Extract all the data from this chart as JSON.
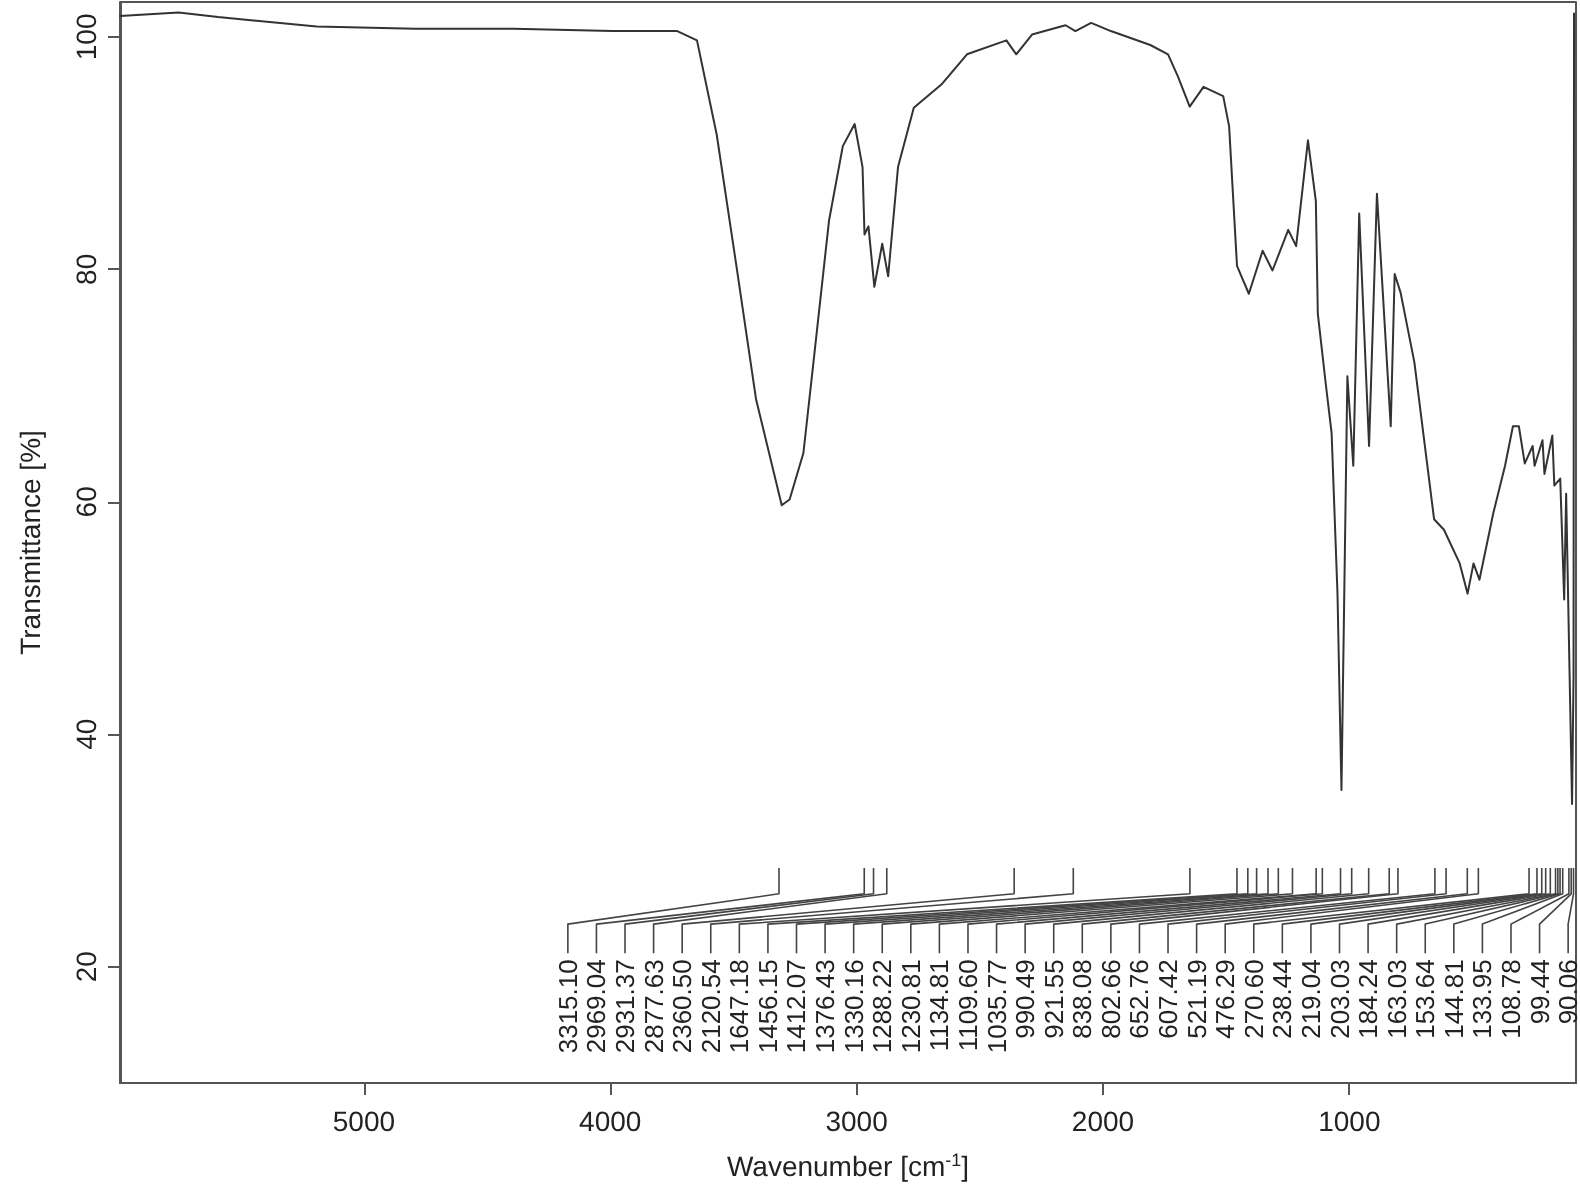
{
  "chart_data": {
    "type": "line",
    "xlabel": "Wavenumber [cm$^{-1}$]",
    "ylabel": "Transmittance [%]",
    "xlim": [
      5990,
      80
    ],
    "ylim": [
      10,
      103
    ],
    "xticks": [
      5000,
      4000,
      3000,
      2000,
      1000
    ],
    "yticks": [
      20,
      40,
      60,
      80,
      100
    ],
    "grid": false,
    "marker": "none",
    "line_style": "solid",
    "series": [
      {
        "color": "#333333",
        "x": [
          5990,
          5752,
          5592,
          5192,
          4792,
          4392,
          3992,
          3728,
          3648,
          3568,
          3488,
          3408,
          3304,
          3272,
          3216,
          3168,
          3112,
          3056,
          3008,
          2976,
          2968,
          2952,
          2928,
          2896,
          2872,
          2832,
          2768,
          2656,
          2552,
          2392,
          2352,
          2288,
          2152,
          2112,
          2048,
          1968,
          1808,
          1736,
          1696,
          1648,
          1592,
          1512,
          1488,
          1456,
          1408,
          1352,
          1312,
          1248,
          1216,
          1168,
          1136,
          1128,
          1096,
          1072,
          1048,
          1032,
          1008,
          984,
          960,
          920,
          888,
          832,
          816,
          792,
          736,
          656,
          616,
          552,
          520,
          496,
          472,
          416,
          368,
          336,
          312,
          288,
          256,
          248,
          216,
          208,
          176,
          168,
          144,
          128,
          120,
          96,
          90,
          88
        ],
        "values": [
          101.8,
          102.1,
          101.7,
          100.9,
          100.7,
          100.7,
          100.5,
          100.5,
          99.7,
          91.6,
          80.3,
          68.8,
          59.7,
          60.2,
          64.2,
          73.4,
          84.2,
          90.6,
          92.5,
          88.8,
          83.0,
          83.7,
          78.5,
          82.2,
          79.4,
          88.8,
          93.9,
          95.9,
          98.5,
          99.7,
          98.5,
          100.2,
          101.0,
          100.5,
          101.2,
          100.5,
          99.3,
          98.5,
          96.6,
          94.0,
          95.7,
          94.9,
          92.3,
          80.3,
          77.9,
          81.6,
          79.9,
          83.4,
          82.0,
          91.1,
          85.9,
          76.2,
          70.2,
          65.9,
          52.0,
          35.2,
          70.8,
          63.1,
          84.8,
          64.8,
          86.5,
          66.5,
          79.6,
          78.0,
          72.0,
          58.5,
          57.6,
          54.7,
          52.1,
          54.7,
          53.3,
          59.0,
          63.1,
          66.5,
          66.5,
          63.3,
          64.8,
          63.1,
          65.3,
          62.4,
          65.7,
          61.4,
          62.0,
          51.6,
          60.7,
          34.0,
          45.0,
          102.0
        ]
      }
    ],
    "annotations": [
      "3315.10",
      "2969.04",
      "2931.37",
      "2877.63",
      "2360.50",
      "2120.54",
      "1647.18",
      "1456.15",
      "1412.07",
      "1376.43",
      "1330.16",
      "1288.22",
      "1230.81",
      "1134.81",
      "1109.60",
      "1035.77",
      "990.49",
      "921.55",
      "838.08",
      "802.66",
      "652.76",
      "607.42",
      "521.19",
      "476.29",
      "270.60",
      "238.44",
      "219.04",
      "203.03",
      "184.24",
      "163.03",
      "153.64",
      "144.81",
      "133.95",
      "108.78",
      "99.44",
      "90.06"
    ]
  }
}
